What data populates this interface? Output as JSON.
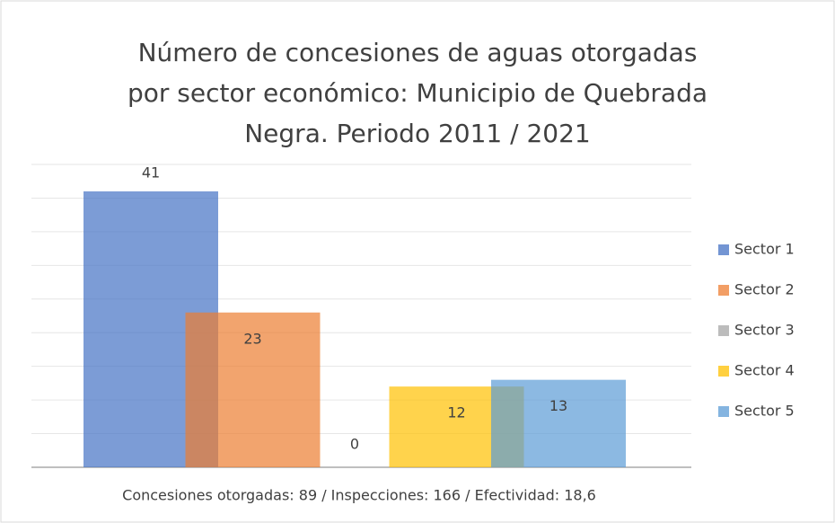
{
  "chart_data": {
    "type": "bar",
    "title": [
      "Número de concesiones de aguas otorgadas",
      "por sector económico: Municipio de Quebrada",
      "Negra. Periodo 2011 / 2021"
    ],
    "x_label": "Concesiones otorgadas: 89  /  Inspecciones:  166  /  Efectividad:  18,6",
    "series": [
      {
        "name": "Sector 1",
        "color": "#4472c4",
        "values": [
          41
        ]
      },
      {
        "name": "Sector 2",
        "color": "#ed7d31",
        "values": [
          23
        ]
      },
      {
        "name": "Sector 3",
        "color": "#a5a5a5",
        "values": [
          0
        ]
      },
      {
        "name": "Sector 4",
        "color": "#ffc000",
        "values": [
          12
        ]
      },
      {
        "name": "Sector 5",
        "color": "#5b9bd5",
        "values": [
          13
        ]
      }
    ],
    "ylim": [
      0,
      45
    ],
    "yticks": [
      0,
      5,
      10,
      15,
      20,
      25,
      30,
      35,
      40,
      45
    ],
    "grid": true,
    "legend": "right"
  }
}
